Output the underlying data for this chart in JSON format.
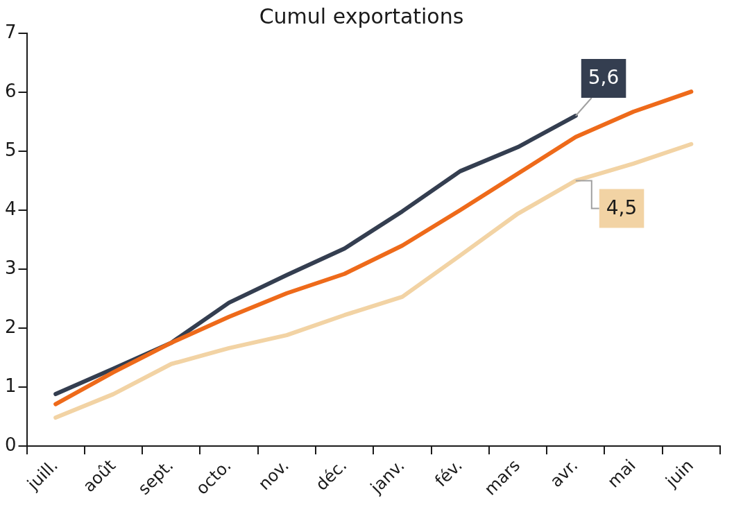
{
  "chart_data": {
    "type": "line",
    "title": "Cumul exportations",
    "categories": [
      "juill.",
      "août",
      "sept.",
      "octo.",
      "nov.",
      "déc.",
      "janv.",
      "fév.",
      "mars",
      "avr.",
      "mai",
      "juin"
    ],
    "series": [
      {
        "color": "#f2d3a4",
        "values": [
          0.48,
          0.88,
          1.39,
          1.66,
          1.88,
          2.22,
          2.53,
          3.23,
          3.94,
          4.5,
          4.79,
          5.12
        ],
        "value_labels": [
          null,
          null,
          null,
          null,
          null,
          null,
          null,
          null,
          null,
          "4,5",
          null,
          null
        ]
      },
      {
        "color": "#ee6a1a",
        "values": [
          0.71,
          1.25,
          1.75,
          2.19,
          2.59,
          2.92,
          3.4,
          4.0,
          4.62,
          5.24,
          5.67,
          6.01
        ]
      },
      {
        "color": "#343e50",
        "values": [
          0.88,
          1.31,
          1.75,
          2.43,
          2.9,
          3.35,
          3.98,
          4.66,
          5.07,
          5.6,
          null,
          null
        ],
        "value_labels": [
          null,
          null,
          null,
          null,
          null,
          null,
          null,
          null,
          null,
          "5,6",
          null,
          null
        ]
      }
    ],
    "ylim": [
      0,
      7
    ],
    "yticks": [
      0,
      1,
      2,
      3,
      4,
      5,
      6,
      7
    ],
    "grid": false,
    "legend": false,
    "marker": "none",
    "line_style": "solid"
  }
}
